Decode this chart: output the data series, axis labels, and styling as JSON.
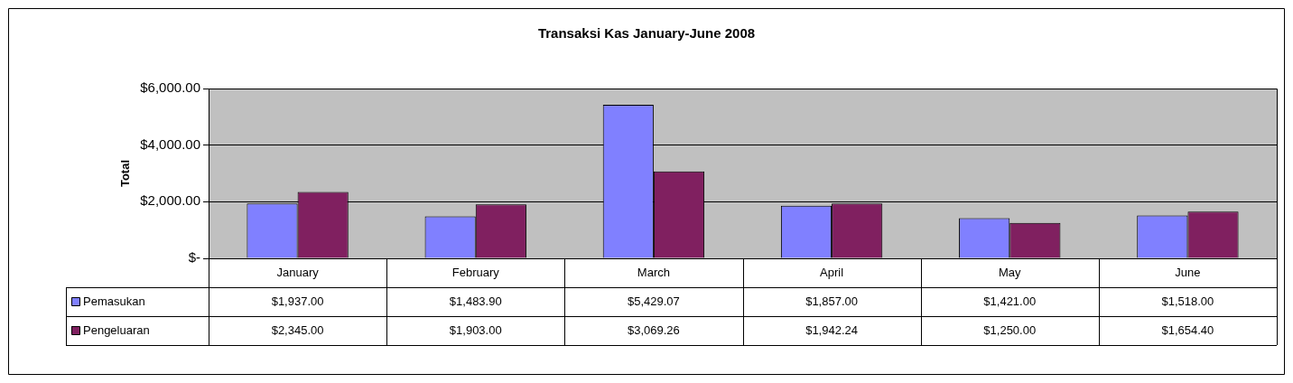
{
  "chart_data": {
    "type": "bar",
    "title": "Transaksi Kas January-June 2008",
    "ylabel": "Total",
    "categories": [
      "January",
      "February",
      "March",
      "April",
      "May",
      "June"
    ],
    "series": [
      {
        "name": "Pemasukan",
        "color": "#8080ff",
        "values": [
          1937,
          1483.9,
          5429.07,
          1857,
          1421,
          1518
        ],
        "value_labels": [
          "$1,937.00",
          "$1,483.90",
          "$5,429.07",
          "$1,857.00",
          "$1,421.00",
          "$1,518.00"
        ]
      },
      {
        "name": "Pengeluaran",
        "color": "#802060",
        "values": [
          2345,
          1903,
          3069.26,
          1942.24,
          1250,
          1654.4
        ],
        "value_labels": [
          "$2,345.00",
          "$1,903.00",
          "$3,069.26",
          "$1,942.24",
          "$1,250.00",
          "$1,654.40"
        ]
      }
    ],
    "ylim": [
      0,
      6000
    ],
    "yticks": [
      {
        "value": 0,
        "label": "$-"
      },
      {
        "value": 2000,
        "label": "$2,000.00"
      },
      {
        "value": 4000,
        "label": "$4,000.00"
      },
      {
        "value": 6000,
        "label": "$6,000.00"
      }
    ],
    "grid": "y",
    "legend": "bottom"
  }
}
